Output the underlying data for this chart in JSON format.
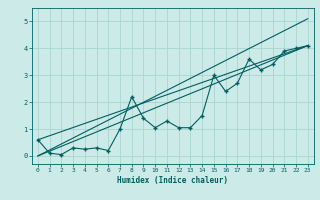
{
  "title": "",
  "xlabel": "Humidex (Indice chaleur)",
  "ylabel": "",
  "background_color": "#cceae7",
  "grid_color": "#aad4d0",
  "line_color": "#006060",
  "marker_color": "#006060",
  "xlim": [
    -0.5,
    23.5
  ],
  "ylim": [
    -0.3,
    5.5
  ],
  "xticks": [
    0,
    1,
    2,
    3,
    4,
    5,
    6,
    7,
    8,
    9,
    10,
    11,
    12,
    13,
    14,
    15,
    16,
    17,
    18,
    19,
    20,
    21,
    22,
    23
  ],
  "yticks": [
    0,
    1,
    2,
    3,
    4,
    5
  ],
  "data_x": [
    0,
    1,
    2,
    3,
    4,
    5,
    6,
    7,
    8,
    9,
    10,
    11,
    12,
    13,
    14,
    15,
    16,
    17,
    18,
    19,
    20,
    21,
    22,
    23
  ],
  "data_y": [
    0.6,
    0.1,
    0.05,
    0.3,
    0.25,
    0.3,
    0.2,
    1.0,
    2.2,
    1.4,
    1.05,
    1.3,
    1.05,
    1.05,
    1.5,
    3.0,
    2.4,
    2.7,
    3.6,
    3.2,
    3.4,
    3.9,
    4.0,
    4.1
  ],
  "line1_x": [
    0,
    23
  ],
  "line1_y": [
    0,
    4.1
  ],
  "line2_x": [
    0,
    23
  ],
  "line2_y": [
    0,
    5.1
  ],
  "line3_x": [
    0,
    23
  ],
  "line3_y": [
    0.6,
    4.1
  ]
}
